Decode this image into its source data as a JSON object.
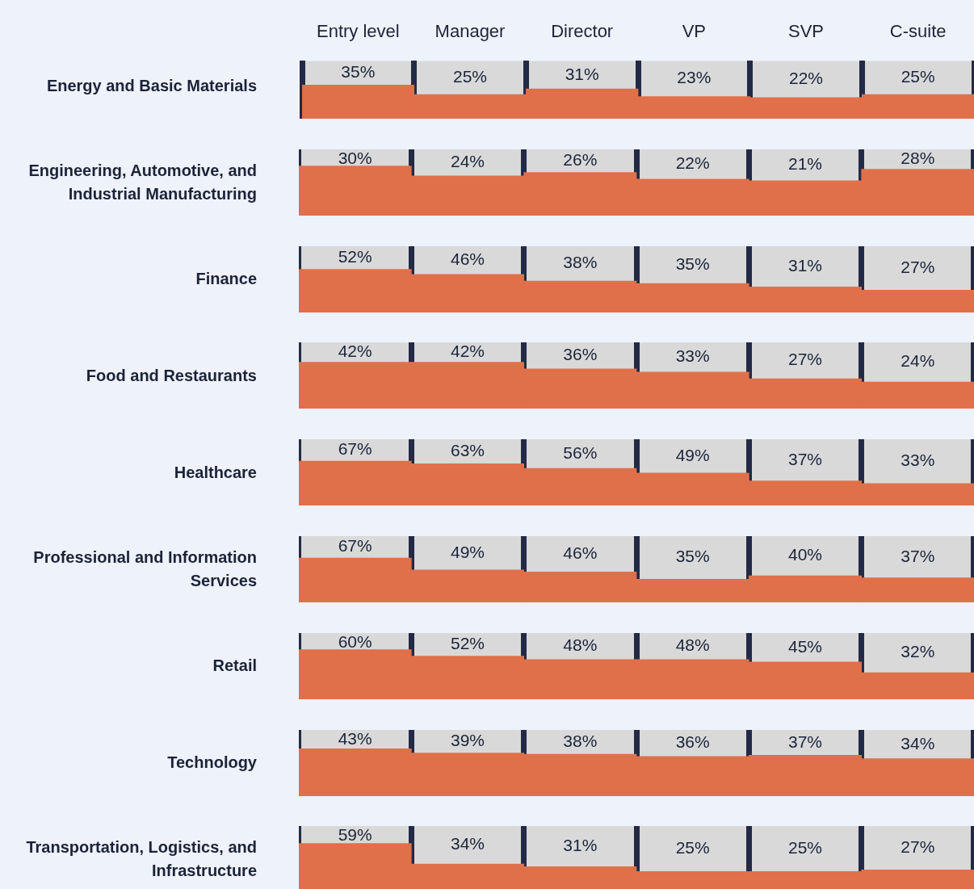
{
  "chart_data": [
    {
      "type": "bar",
      "title": "Energy and Basic Materials",
      "categories": [
        "Entry level",
        "Manager",
        "Director",
        "VP",
        "SVP",
        "C-suite"
      ],
      "values": [
        35,
        25,
        31,
        23,
        22,
        25
      ],
      "value_labels": [
        "35%",
        "25%",
        "31%",
        "23%",
        "22%",
        "25%"
      ],
      "color": "#e0704a",
      "grid": "x",
      "tick_labels": "x"
    },
    {
      "type": "bar",
      "title": "Engineering, Automotive, and Industrial Manufacturing",
      "categories": [
        null,
        null,
        null,
        null,
        null,
        null
      ],
      "values": [
        30,
        24,
        26,
        22,
        21,
        28
      ],
      "value_labels": [
        "30%",
        "24%",
        "26%",
        "22%",
        "21%",
        "28%"
      ],
      "color": "#e0704a",
      "grid": "x",
      "tick_labels": false
    },
    {
      "type": "bar",
      "title": "Finance",
      "categories": [
        null,
        null,
        null,
        null,
        null,
        null
      ],
      "values": [
        52,
        46,
        38,
        35,
        31,
        27
      ],
      "value_labels": [
        "52%",
        "46%",
        "38%",
        "35%",
        "31%",
        "27%"
      ],
      "color": "#e0704a",
      "grid": "x",
      "tick_labels": false
    },
    {
      "type": "bar",
      "title": "Food and Restaurants",
      "categories": [
        null,
        null,
        null,
        null,
        null,
        null
      ],
      "values": [
        42,
        42,
        36,
        33,
        27,
        24
      ],
      "value_labels": [
        "42%",
        "42%",
        "36%",
        "33%",
        "27%",
        "24%"
      ],
      "color": "#e0704a",
      "grid": "x",
      "tick_labels": false
    },
    {
      "type": "bar",
      "title": "Healthcare",
      "categories": [
        null,
        null,
        null,
        null,
        null,
        null
      ],
      "values": [
        67,
        63,
        56,
        49,
        37,
        33
      ],
      "value_labels": [
        "67%",
        "63%",
        "56%",
        "49%",
        "37%",
        "33%"
      ],
      "color": "#e0704a",
      "grid": "x",
      "tick_labels": false
    },
    {
      "type": "bar",
      "title": "Professional and Information Services",
      "categories": [
        null,
        null,
        null,
        null,
        null,
        null
      ],
      "values": [
        67,
        49,
        46,
        35,
        40,
        37
      ],
      "value_labels": [
        "67%",
        "49%",
        "46%",
        "35%",
        "40%",
        "37%"
      ],
      "color": "#e0704a",
      "grid": "x",
      "tick_labels": false
    },
    {
      "type": "bar",
      "title": "Retail",
      "categories": [
        null,
        null,
        null,
        null,
        null,
        null
      ],
      "values": [
        60,
        52,
        48,
        48,
        45,
        32
      ],
      "value_labels": [
        "60%",
        "52%",
        "48%",
        "48%",
        "45%",
        "32%"
      ],
      "color": "#e0704a",
      "grid": "x",
      "tick_labels": false
    },
    {
      "type": "bar",
      "title": "Technology",
      "categories": [
        null,
        null,
        null,
        null,
        null,
        null
      ],
      "values": [
        43,
        39,
        38,
        36,
        37,
        34
      ],
      "value_labels": [
        "43%",
        "39%",
        "38%",
        "36%",
        "37%",
        "34%"
      ],
      "color": "#e0704a",
      "grid": "x",
      "tick_labels": false
    },
    {
      "type": "bar",
      "title": "Transportation, Logistics, and Infrastructure",
      "categories": [
        null,
        null,
        null,
        null,
        null,
        null
      ],
      "values": [
        59,
        34,
        31,
        25,
        25,
        27
      ],
      "value_labels": [
        "59%",
        "34%",
        "31%",
        "25%",
        "25%",
        "27%"
      ],
      "color": "#e0704a",
      "grid": "x",
      "tick_labels": false
    }
  ]
}
